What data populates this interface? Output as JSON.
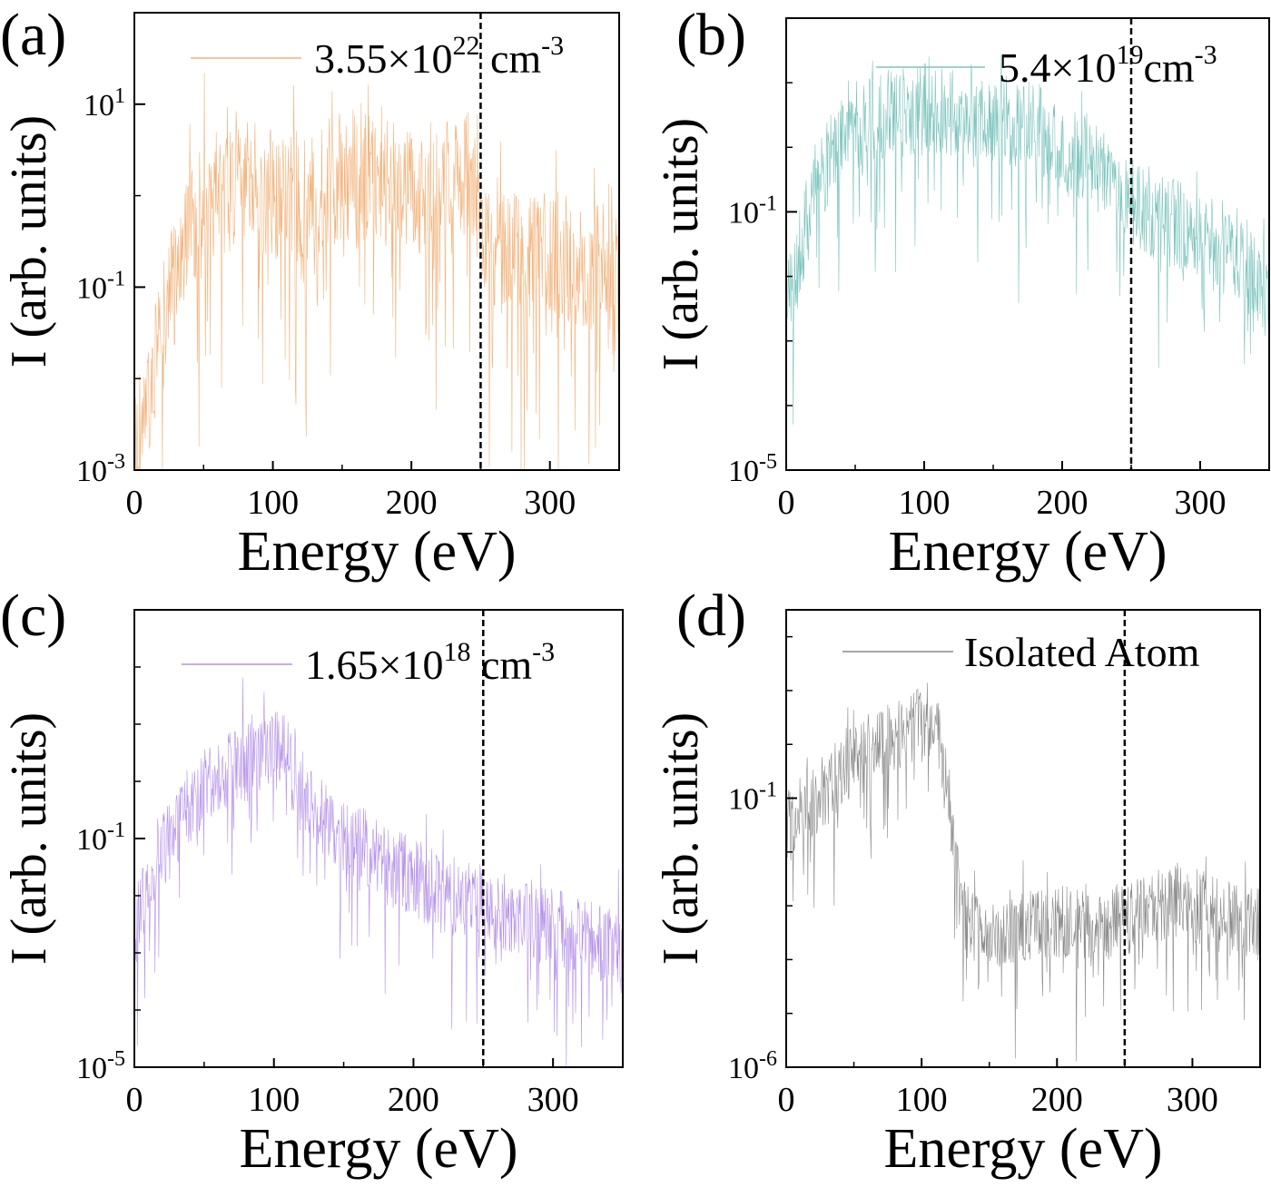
{
  "chart_data": [
    {
      "panel_label": "(a)",
      "type": "line",
      "xlabel": "Energy (eV)",
      "ylabel": "I (arb. units)",
      "xlim": [
        0,
        350
      ],
      "ylim_log10": [
        -3,
        2
      ],
      "y_scale": "log",
      "x_ticks": [
        "0",
        "100",
        "200",
        "300"
      ],
      "y_ticks": [
        {
          "base": "10",
          "exp": "-3",
          "value": -3
        },
        {
          "base": "10",
          "exp": "-1",
          "value": -1
        },
        {
          "base": "10",
          "exp": "1",
          "value": 1
        }
      ],
      "vline_x": 250,
      "legend_position": "top-right",
      "color": "#f2b27a",
      "series": [
        {
          "name": "3.55×10",
          "name_exp": "22",
          "name_unit": " cm",
          "name_unit_exp": "-3",
          "x": [
            0,
            20,
            40,
            60,
            80,
            100,
            120,
            140,
            160,
            180,
            200,
            220,
            240,
            250,
            260,
            280,
            300,
            320,
            340,
            350
          ],
          "y_log10_envelope_top": [
            -1.5,
            -0.5,
            1.1,
            1.2,
            1.1,
            0.7,
            0.5,
            0.8,
            1.0,
            0.8,
            0.6,
            0.8,
            0.9,
            0.5,
            0.4,
            0.3,
            0.2,
            0.0,
            0.0,
            0.0
          ],
          "y_log10_typical": [
            -3.0,
            -1.4,
            -0.2,
            0.1,
            0.2,
            0.1,
            0.0,
            0.2,
            0.3,
            0.2,
            0.1,
            0.2,
            0.3,
            -0.2,
            -0.5,
            -0.6,
            -0.6,
            -0.7,
            -0.7,
            -0.8
          ]
        }
      ]
    },
    {
      "panel_label": "(b)",
      "type": "line",
      "xlabel": "Energy (eV)",
      "ylabel": "I (arb. units)",
      "xlim": [
        0,
        350
      ],
      "ylim_log10": [
        -5,
        2
      ],
      "y_scale": "log",
      "x_ticks": [
        "0",
        "100",
        "200",
        "300"
      ],
      "y_ticks": [
        {
          "base": "10",
          "exp": "-5",
          "value": -5
        },
        {
          "base": "10",
          "exp": "-1",
          "value": -1
        }
      ],
      "vline_x": 250,
      "legend_position": "top-right",
      "color": "#7cc4bd",
      "series": [
        {
          "name": "5.4×10",
          "name_exp": "19",
          "name_unit": "cm",
          "name_unit_exp": "-3",
          "x": [
            0,
            20,
            40,
            60,
            80,
            100,
            120,
            140,
            160,
            180,
            200,
            220,
            240,
            250,
            260,
            280,
            300,
            320,
            340,
            350
          ],
          "y_log10_typical": [
            -2.5,
            -0.6,
            0.3,
            0.5,
            0.6,
            0.7,
            0.6,
            0.4,
            0.5,
            0.4,
            0.0,
            -0.1,
            -0.6,
            -0.8,
            -0.9,
            -1.1,
            -1.3,
            -1.6,
            -2.0,
            -2.3
          ]
        }
      ]
    },
    {
      "panel_label": "(c)",
      "type": "line",
      "xlabel": "Energy (eV)",
      "ylabel": "I (arb. units)",
      "xlim": [
        0,
        350
      ],
      "ylim_log10": [
        -5,
        3
      ],
      "y_scale": "log",
      "x_ticks": [
        "0",
        "100",
        "200",
        "300"
      ],
      "y_ticks": [
        {
          "base": "10",
          "exp": "-5",
          "value": -5
        },
        {
          "base": "10",
          "exp": "-1",
          "value": -1
        }
      ],
      "vline_x": 250,
      "legend_position": "top-right",
      "color": "#b592e8",
      "series": [
        {
          "name": "1.65×10",
          "name_exp": "18",
          "name_unit": " cm",
          "name_unit_exp": "-3",
          "x": [
            0,
            20,
            40,
            60,
            80,
            100,
            110,
            120,
            140,
            160,
            180,
            200,
            220,
            240,
            260,
            280,
            300,
            320,
            340,
            350
          ],
          "y_log10_typical": [
            -2.5,
            -1.2,
            -0.3,
            0.2,
            0.4,
            0.6,
            0.6,
            -0.3,
            -0.7,
            -1.0,
            -1.4,
            -1.6,
            -1.9,
            -2.0,
            -2.2,
            -2.3,
            -2.5,
            -2.6,
            -2.8,
            -3.0
          ]
        }
      ]
    },
    {
      "panel_label": "(d)",
      "type": "line",
      "xlabel": "Energy (eV)",
      "ylabel": "I (arb. units)",
      "xlim": [
        0,
        350
      ],
      "ylim_log10": [
        -6,
        2.5
      ],
      "y_scale": "log",
      "x_ticks": [
        "0",
        "100",
        "200",
        "300"
      ],
      "y_ticks": [
        {
          "base": "10",
          "exp": "-6",
          "value": -6
        },
        {
          "base": "10",
          "exp": "-1",
          "value": -1
        }
      ],
      "vline_x": 250,
      "legend_position": "top-right",
      "color": "#8a8a8a",
      "series": [
        {
          "name": "Isolated Atom",
          "name_exp": "",
          "name_unit": "",
          "name_unit_exp": "",
          "x": [
            0,
            20,
            40,
            60,
            80,
            100,
            110,
            120,
            130,
            150,
            170,
            190,
            210,
            230,
            250,
            270,
            290,
            310,
            330,
            350
          ],
          "y_log10_typical": [
            -1.5,
            -1.0,
            -0.5,
            0.0,
            0.2,
            0.5,
            0.6,
            -1.0,
            -3.2,
            -3.5,
            -3.4,
            -3.3,
            -3.2,
            -3.3,
            -3.2,
            -3.0,
            -2.8,
            -3.0,
            -3.2,
            -3.3
          ]
        }
      ]
    }
  ]
}
